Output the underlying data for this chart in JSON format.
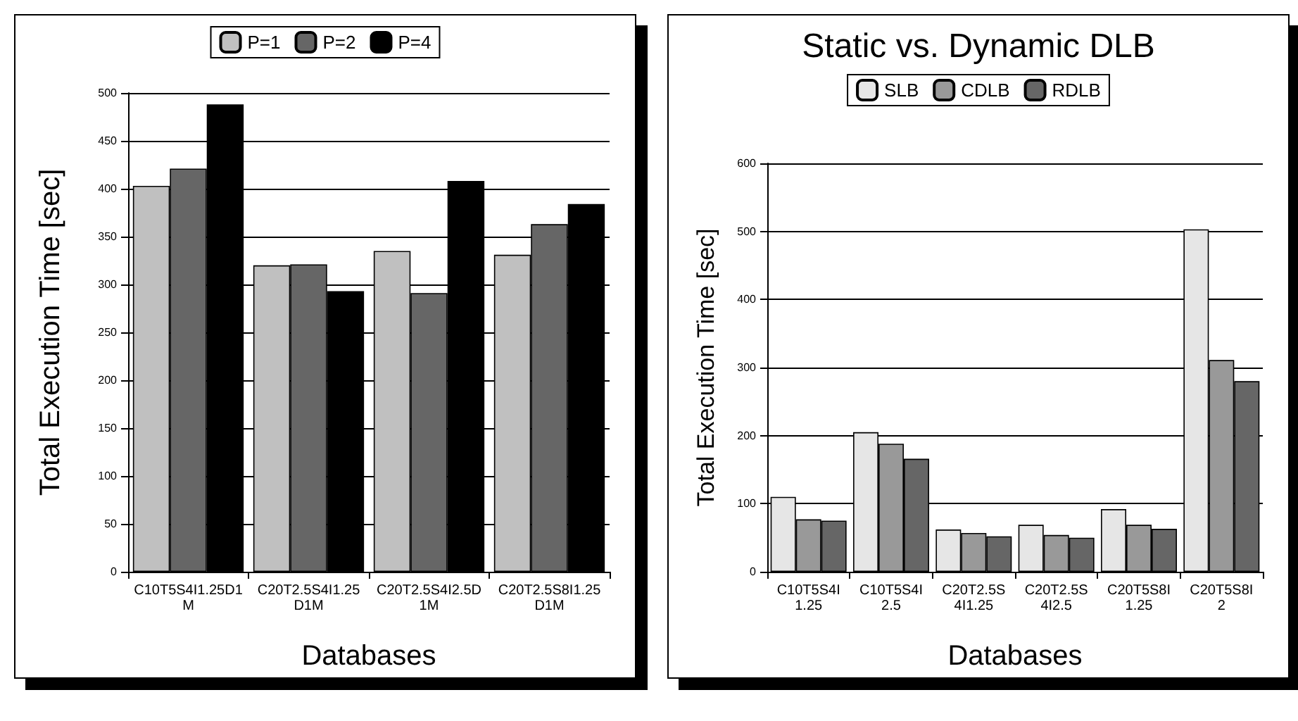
{
  "chart_data": [
    {
      "type": "bar",
      "xlabel": "Databases",
      "ylabel": "Total Execution Time [sec]",
      "categories": [
        "C10T5S4I1.25D1M",
        "C20T2.5S4I1.25D1M",
        "C20T2.5S4I2.5D1M",
        "C20T2.5S8I1.25D1M"
      ],
      "series": [
        {
          "name": "P=1",
          "color": "#c0c0c0",
          "values": [
            403,
            320,
            335,
            331
          ]
        },
        {
          "name": "P=2",
          "color": "#666666",
          "values": [
            421,
            321,
            291,
            363
          ]
        },
        {
          "name": "P=4",
          "color": "#000000",
          "values": [
            488,
            293,
            408,
            384
          ]
        }
      ],
      "ylim": [
        0,
        500
      ],
      "yticks": [
        0,
        50,
        100,
        150,
        200,
        250,
        300,
        350,
        400,
        450,
        500
      ],
      "grid": "y",
      "legend": "top"
    },
    {
      "type": "bar",
      "title": "Static vs. Dynamic DLB",
      "xlabel": "Databases",
      "ylabel": "Total Execution Time [sec]",
      "categories": [
        "C10T5S4I1.25",
        "C10T5S4I2.5",
        "C20T2.5S4I1.25",
        "C20T2.5S4I2.5",
        "C20T5S8I1.25",
        "C20T5S8I2"
      ],
      "series": [
        {
          "name": "SLB",
          "color": "#e6e6e6",
          "values": [
            110,
            205,
            62,
            69,
            92,
            503
          ]
        },
        {
          "name": "CDLB",
          "color": "#999999",
          "values": [
            77,
            188,
            57,
            54,
            69,
            311
          ]
        },
        {
          "name": "RDLB",
          "color": "#666666",
          "values": [
            75,
            166,
            52,
            50,
            63,
            280
          ]
        }
      ],
      "ylim": [
        0,
        600
      ],
      "yticks": [
        0,
        100,
        200,
        300,
        400,
        500,
        600
      ],
      "grid": "y",
      "legend": "top"
    }
  ]
}
